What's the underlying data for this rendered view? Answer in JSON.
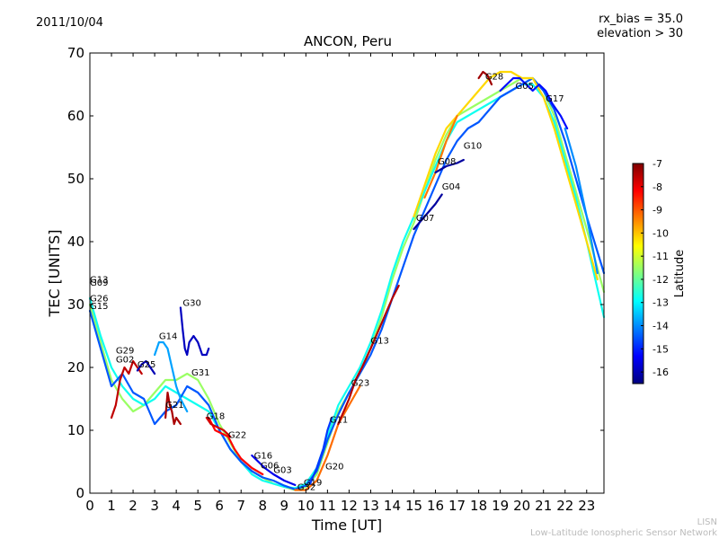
{
  "header": {
    "date": "2011/10/04",
    "rx_bias": "rx_bias = 35.0",
    "elevation": "elevation > 30",
    "credit_short": "LISN",
    "credit_long": "Low-Latitude Ionospheric Sensor Network"
  },
  "chart_data": {
    "type": "line",
    "title": "ANCON, Peru",
    "xlabel": "Time [UT]",
    "ylabel": "TEC [UNITS]",
    "xlim": [
      0,
      23.8
    ],
    "ylim": [
      0,
      70
    ],
    "xticks": [
      "0",
      "1",
      "2",
      "3",
      "4",
      "5",
      "6",
      "7",
      "8",
      "9",
      "10",
      "11",
      "12",
      "13",
      "14",
      "15",
      "16",
      "17",
      "18",
      "19",
      "20",
      "21",
      "22",
      "23"
    ],
    "yticks": [
      "0",
      "10",
      "20",
      "30",
      "40",
      "50",
      "60",
      "70"
    ],
    "colorbar": {
      "label": "Latitude",
      "min": -16.5,
      "max": -7,
      "ticks": [
        "-7",
        "-8",
        "-9",
        "-10",
        "-11",
        "-12",
        "-13",
        "-14",
        "-15",
        "-16"
      ],
      "colors": [
        "#00007f",
        "#0000ff",
        "#007fff",
        "#00ffff",
        "#7fff7f",
        "#ffff00",
        "#ff7f00",
        "#ff0000",
        "#7f0000"
      ]
    },
    "satellite_labels": [
      {
        "name": "G13",
        "x": 0.0,
        "y": 33.5
      },
      {
        "name": "G09",
        "x": 0.0,
        "y": 33.0
      },
      {
        "name": "G26",
        "x": 0.0,
        "y": 30.5
      },
      {
        "name": "G15",
        "x": 0.0,
        "y": 29.3
      },
      {
        "name": "G29",
        "x": 1.2,
        "y": 22.2
      },
      {
        "name": "G02",
        "x": 1.2,
        "y": 20.8
      },
      {
        "name": "G25",
        "x": 2.2,
        "y": 20.0
      },
      {
        "name": "G14",
        "x": 3.2,
        "y": 24.5
      },
      {
        "name": "G30",
        "x": 4.3,
        "y": 29.8
      },
      {
        "name": "G31",
        "x": 4.7,
        "y": 18.7
      },
      {
        "name": "G21",
        "x": 3.5,
        "y": 13.6
      },
      {
        "name": "G18",
        "x": 5.4,
        "y": 11.8
      },
      {
        "name": "G22",
        "x": 6.4,
        "y": 8.8
      },
      {
        "name": "G16",
        "x": 7.6,
        "y": 5.5
      },
      {
        "name": "G06",
        "x": 7.9,
        "y": 3.9
      },
      {
        "name": "G03",
        "x": 8.5,
        "y": 3.2
      },
      {
        "name": "G19",
        "x": 9.9,
        "y": 1.2
      },
      {
        "name": "G32",
        "x": 9.6,
        "y": 0.5
      },
      {
        "name": "G20",
        "x": 10.9,
        "y": 3.8
      },
      {
        "name": "G11",
        "x": 11.1,
        "y": 11.2
      },
      {
        "name": "G23",
        "x": 12.1,
        "y": 17.1
      },
      {
        "name": "G13",
        "x": 13.0,
        "y": 23.8
      },
      {
        "name": "G07",
        "x": 15.1,
        "y": 43.3
      },
      {
        "name": "G04",
        "x": 16.3,
        "y": 48.3
      },
      {
        "name": "G08",
        "x": 16.1,
        "y": 52.3
      },
      {
        "name": "G10",
        "x": 17.3,
        "y": 54.8
      },
      {
        "name": "G28",
        "x": 18.3,
        "y": 65.8
      },
      {
        "name": "G05",
        "x": 19.7,
        "y": 64.3
      },
      {
        "name": "G17",
        "x": 21.1,
        "y": 62.3
      }
    ],
    "series": [
      {
        "name": "main-a",
        "lat": -11.5,
        "x": [
          0,
          0.5,
          1,
          1.5,
          2,
          2.5,
          3,
          3.5,
          4,
          4.5,
          5,
          5.5,
          6,
          6.5,
          7,
          7.5,
          8,
          8.5,
          9,
          9.5,
          10,
          10.5,
          11,
          11.5,
          12,
          12.5,
          13,
          13.5,
          14,
          14.5,
          15,
          15.5,
          16,
          16.5,
          17,
          17.5,
          18,
          18.5,
          19,
          19.5,
          20,
          20.5,
          21,
          21.5,
          22,
          22.5,
          23,
          23.8
        ],
        "y": [
          30,
          24,
          18,
          15,
          13,
          14,
          16,
          18,
          18,
          19,
          18,
          15,
          11,
          8,
          5,
          3.5,
          2.5,
          1.5,
          1,
          0.5,
          1,
          3,
          8,
          13,
          16,
          19,
          23,
          28,
          34,
          39,
          43,
          48,
          53,
          57,
          60,
          61,
          62,
          63,
          64,
          65,
          66,
          66,
          64,
          60,
          54,
          48,
          42,
          32
        ]
      },
      {
        "name": "main-b",
        "lat": -12.8,
        "x": [
          0,
          0.5,
          1,
          1.5,
          2,
          2.5,
          3,
          3.5,
          4,
          4.5,
          5,
          5.5,
          6,
          6.5,
          7,
          7.5,
          8,
          8.5,
          9,
          9.5,
          10,
          10.5,
          11,
          11.5,
          12,
          12.5,
          13,
          13.5,
          14,
          14.5,
          15,
          15.5,
          16,
          16.5,
          17,
          17.5,
          18,
          18.5,
          19,
          19.5,
          20,
          20.5,
          21,
          21.5,
          22,
          22.5,
          23,
          23.8
        ],
        "y": [
          31,
          25,
          20,
          17,
          15,
          14,
          15,
          17,
          16,
          15,
          14,
          13,
          10,
          7,
          5,
          3,
          2,
          1.5,
          1,
          0.8,
          1.5,
          4,
          9,
          14,
          17,
          20,
          24,
          29,
          35,
          40,
          44,
          48,
          52,
          56,
          59,
          60,
          61,
          62,
          63,
          64,
          65,
          65,
          63,
          59,
          53,
          47,
          40,
          28
        ]
      },
      {
        "name": "main-c",
        "lat": -14.5,
        "x": [
          0,
          0.5,
          1,
          1.5,
          2,
          2.5,
          3,
          3.5,
          4,
          4.5,
          5,
          5.5,
          6,
          6.5,
          7,
          7.5,
          8,
          8.5,
          9,
          9.5,
          10,
          10.5,
          11,
          11.5,
          12,
          12.5,
          13,
          13.5,
          14,
          14.5,
          15,
          15.5,
          16,
          16.5,
          17,
          17.5,
          18,
          18.5,
          19,
          19.5,
          20,
          20.5,
          21,
          21.5,
          22,
          22.5,
          23,
          23.8
        ],
        "y": [
          29,
          23,
          17,
          19,
          16,
          15,
          11,
          13,
          14,
          17,
          16,
          14,
          10,
          7,
          5,
          3.5,
          2.5,
          2,
          1.2,
          0.6,
          1.2,
          3.5,
          8.5,
          12.5,
          16,
          19,
          22,
          26,
          31,
          36,
          41,
          45,
          49,
          53,
          56,
          58,
          59,
          61,
          63,
          64,
          65,
          66,
          64,
          61,
          56,
          50,
          44,
          35
        ]
      },
      {
        "name": "peak-d",
        "lat": -10.2,
        "x": [
          15,
          15.5,
          16,
          16.5,
          17,
          17.5,
          18,
          18.5,
          19,
          19.5,
          20,
          20.5,
          21,
          21.5,
          22,
          22.5,
          23,
          23.5
        ],
        "y": [
          44,
          49,
          54,
          58,
          60,
          62,
          64,
          66,
          67,
          67,
          66,
          66,
          63,
          58,
          52,
          46,
          40,
          34
        ]
      },
      {
        "name": "peak-e",
        "lat": -9.3,
        "x": [
          15.5,
          16,
          16.5,
          17
        ],
        "y": [
          47,
          51,
          56,
          60
        ]
      },
      {
        "name": "g30",
        "lat": -15.9,
        "x": [
          4.2,
          4.3,
          4.4,
          4.5,
          4.6,
          4.8,
          5.0,
          5.2,
          5.4,
          5.5
        ],
        "y": [
          29.5,
          26,
          23,
          22,
          24,
          25,
          24,
          22,
          22,
          23
        ]
      },
      {
        "name": "g02",
        "lat": -7.6,
        "x": [
          1,
          1.2,
          1.4,
          1.6,
          1.8,
          2,
          2.2,
          2.4
        ],
        "y": [
          12,
          14,
          18,
          20,
          19,
          21,
          20,
          19
        ]
      },
      {
        "name": "g21",
        "lat": -7.4,
        "x": [
          3.5,
          3.6,
          3.7,
          3.8,
          3.9,
          4.0,
          4.2
        ],
        "y": [
          12,
          16,
          14,
          13,
          11,
          12,
          11
        ]
      },
      {
        "name": "g22",
        "lat": -8.2,
        "x": [
          5.5,
          5.8,
          6.1,
          6.4,
          6.7,
          7,
          7.5,
          8
        ],
        "y": [
          12,
          10,
          9.5,
          9,
          7,
          5.5,
          4,
          3
        ]
      },
      {
        "name": "g16",
        "lat": -15.5,
        "x": [
          7.5,
          7.8,
          8.1,
          8.5,
          9,
          9.5
        ],
        "y": [
          6,
          5,
          4,
          3,
          2,
          1.3
        ]
      },
      {
        "name": "g20",
        "lat": -9.2,
        "x": [
          9.5,
          10,
          10.5,
          11,
          11.5,
          12,
          12.5
        ],
        "y": [
          0.5,
          0.5,
          2,
          6,
          11,
          14,
          17
        ]
      },
      {
        "name": "g23",
        "lat": -7.5,
        "x": [
          11.5,
          12,
          12.3,
          12.6,
          13,
          13.5,
          14,
          14.3
        ],
        "y": [
          11,
          15,
          18,
          20,
          23,
          27,
          31,
          33
        ]
      },
      {
        "name": "g11",
        "lat": -14.8,
        "x": [
          10.2,
          10.5,
          10.8,
          11,
          11.2
        ],
        "y": [
          1.5,
          4,
          7,
          10,
          12
        ]
      },
      {
        "name": "g04",
        "lat": -16.2,
        "x": [
          15,
          15.5,
          16,
          16.3
        ],
        "y": [
          42,
          44,
          46,
          47.5
        ]
      },
      {
        "name": "g10",
        "lat": -16.2,
        "x": [
          16,
          16.5,
          17,
          17.3
        ],
        "y": [
          51,
          52,
          52.5,
          53
        ]
      },
      {
        "name": "g05",
        "lat": -15.2,
        "x": [
          19,
          19.3,
          19.6,
          19.9,
          20.2,
          20.5,
          20.8,
          21.1,
          21.4,
          21.8,
          22.1
        ],
        "y": [
          64,
          65,
          66,
          66,
          65,
          64,
          65,
          64,
          62,
          60,
          58
        ]
      },
      {
        "name": "g28",
        "lat": -7.3,
        "x": [
          18,
          18.2,
          18.4,
          18.6
        ],
        "y": [
          66,
          67,
          66.5,
          65
        ]
      },
      {
        "name": "g17-tail",
        "lat": -14.0,
        "x": [
          22,
          22.5,
          23,
          23.5
        ],
        "y": [
          58,
          52,
          44,
          35
        ]
      },
      {
        "name": "g18",
        "lat": -7.8,
        "x": [
          5.4,
          5.6,
          5.9,
          6.2,
          6.5
        ],
        "y": [
          12,
          11,
          10.5,
          10,
          9
        ]
      },
      {
        "name": "g14",
        "lat": -13.8,
        "x": [
          3,
          3.2,
          3.4,
          3.6,
          3.8,
          4,
          4.2,
          4.5
        ],
        "y": [
          22,
          24,
          24,
          23,
          20,
          17,
          15,
          13
        ]
      },
      {
        "name": "g25",
        "lat": -16.0,
        "x": [
          2.2,
          2.4,
          2.6,
          2.8,
          3.0
        ],
        "y": [
          19.5,
          20.5,
          21,
          20,
          19
        ]
      }
    ]
  }
}
